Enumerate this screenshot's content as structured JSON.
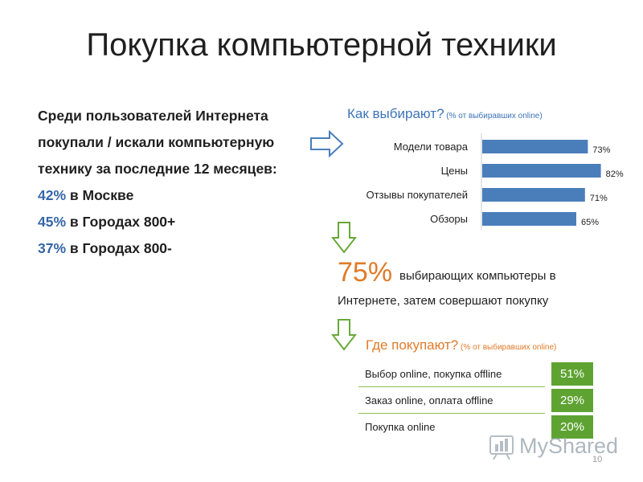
{
  "title": "Покупка компьютерной техники",
  "left": {
    "lines": [
      "Среди пользователей Интернета",
      "покупали / искали компьютерную",
      "технику за последние 12 месяцев:"
    ],
    "stats": [
      {
        "pct": "42%",
        "text": " в Москве"
      },
      {
        "pct": "45%",
        "text": " в Городах 800+"
      },
      {
        "pct": "37%",
        "text": " в Городах 800-"
      }
    ]
  },
  "choose": {
    "title": "Как выбирают?",
    "note": " (% от выбиравших online)"
  },
  "chart_data": {
    "type": "bar",
    "orientation": "horizontal",
    "categories": [
      "Модели товара",
      "Цены",
      "Отзывы покупателей",
      "Обзоры"
    ],
    "values": [
      73,
      82,
      71,
      65
    ],
    "value_labels": [
      "73%",
      "82%",
      "71%",
      "65%"
    ],
    "xlim": [
      0,
      100
    ],
    "color": "#4a7ebb",
    "title": "",
    "xlabel": "",
    "ylabel": ""
  },
  "conversion": {
    "pct": "75%",
    "text1": "выбирающих компьютеры в",
    "text2": "Интернете, затем совершают покупку"
  },
  "where": {
    "title": "Где покупают?",
    "note": " (% от выбиравших online)",
    "rows": [
      {
        "label": "Выбор online, покупка offline",
        "value": "51%"
      },
      {
        "label": "Заказ online, оплата offline",
        "value": "29%"
      },
      {
        "label": "Покупка online",
        "value": "20%"
      }
    ]
  },
  "watermark": "MyShared",
  "page_number": "10",
  "colors": {
    "blue": "#3566a8",
    "orange": "#e07b29",
    "green": "#5ea332",
    "bar": "#4a7ebb"
  }
}
